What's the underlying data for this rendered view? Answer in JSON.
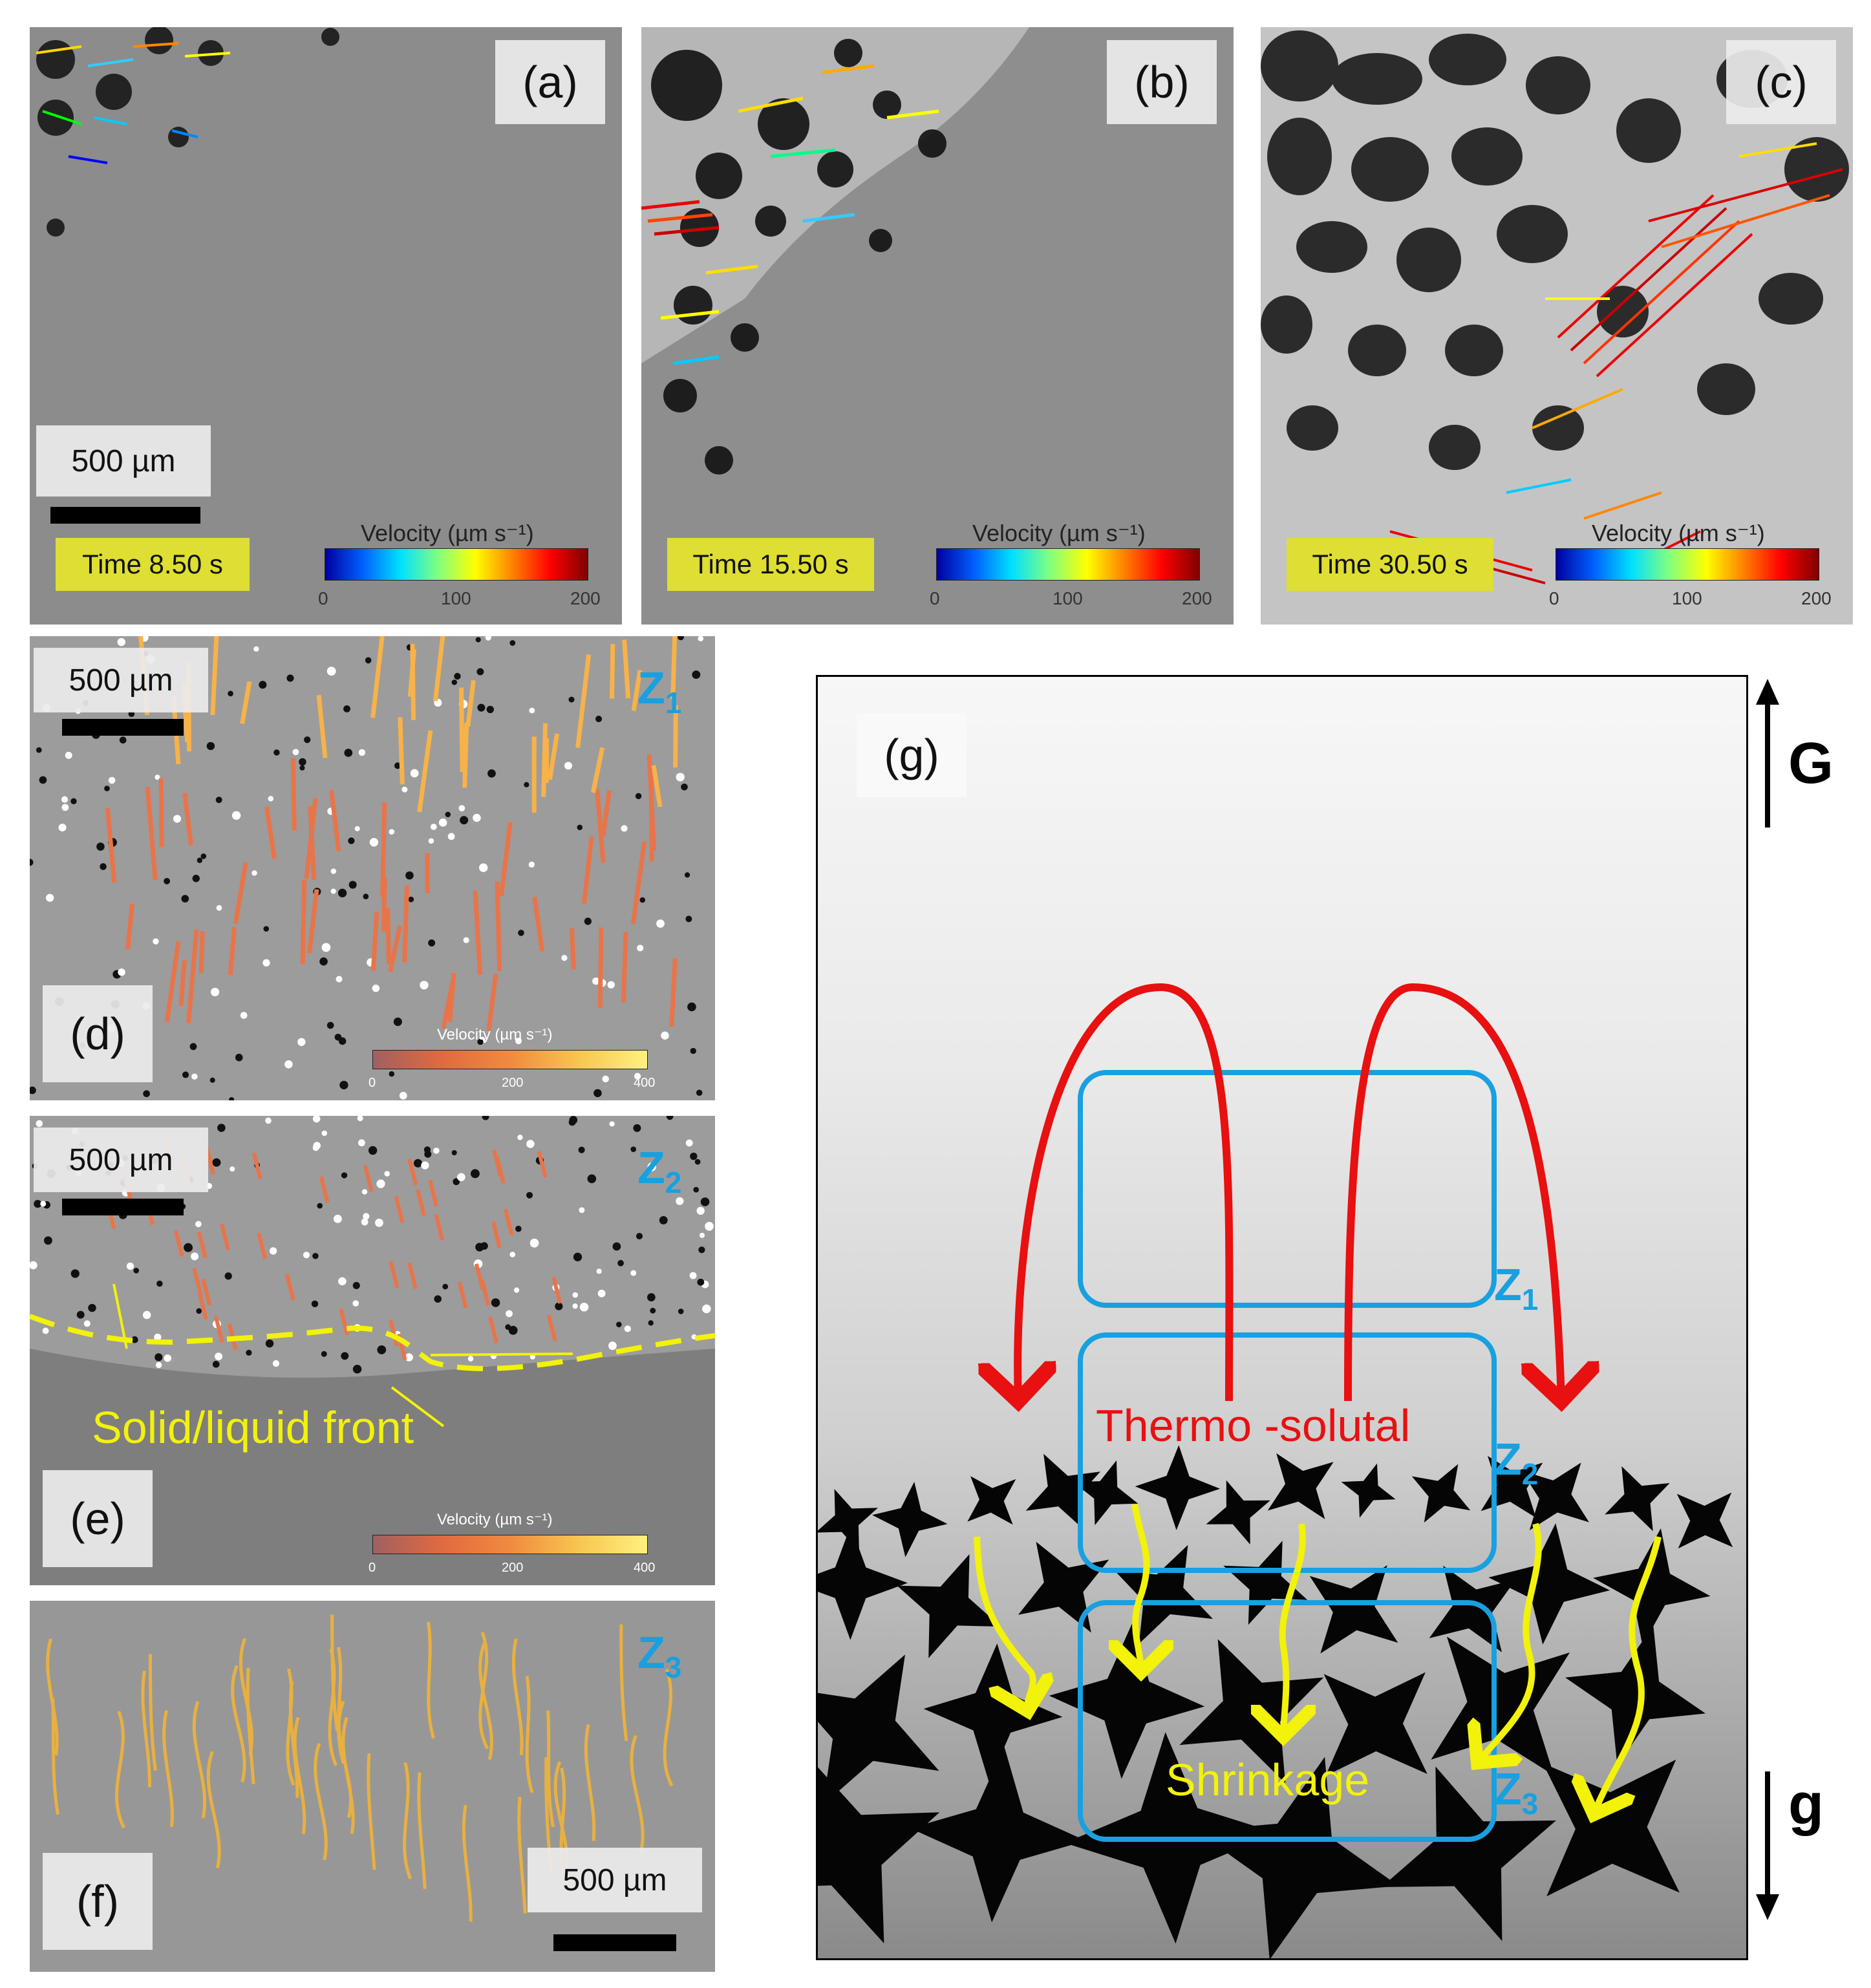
{
  "panels": {
    "a": {
      "label": "(a)",
      "scale": "500 µm",
      "time": "Time 8.50 s",
      "colorbar": {
        "title": "Velocity (µm s⁻¹)",
        "ticks": [
          "0",
          "100",
          "200"
        ]
      }
    },
    "b": {
      "label": "(b)",
      "time": "Time 15.50 s",
      "colorbar": {
        "title": "Velocity (µm s⁻¹)",
        "ticks": [
          "0",
          "100",
          "200"
        ]
      }
    },
    "c": {
      "label": "(c)",
      "time": "Time 30.50 s",
      "colorbar": {
        "title": "Velocity (µm s⁻¹)",
        "ticks": [
          "0",
          "100",
          "200"
        ]
      }
    },
    "d": {
      "label": "(d)",
      "scale": "500 µm",
      "zone": "Z",
      "zone_sub": "1",
      "colorbar": {
        "title": "Velocity (µm s⁻¹)",
        "ticks": [
          "0",
          "200",
          "400"
        ]
      }
    },
    "e": {
      "label": "(e)",
      "scale": "500 µm",
      "zone": "Z",
      "zone_sub": "2",
      "front_label": "Solid/liquid front",
      "colorbar": {
        "title": "Velocity (µm s⁻¹)",
        "ticks": [
          "0",
          "200",
          "400"
        ]
      }
    },
    "f": {
      "label": "(f)",
      "scale": "500 µm",
      "zone": "Z",
      "zone_sub": "3"
    },
    "g": {
      "label": "(g)",
      "gradient_label": "G",
      "gravity_label": "g",
      "thermo_label": "Thermo -solutal",
      "shrinkage_label": "Shrinkage",
      "zones": [
        {
          "name": "Z",
          "sub": "1"
        },
        {
          "name": "Z",
          "sub": "2"
        },
        {
          "name": "Z",
          "sub": "3"
        }
      ]
    }
  },
  "colors": {
    "zone_blue": "#18a0e0",
    "flow_red": "#e81010",
    "shrink_yellow": "#f2f20a"
  }
}
